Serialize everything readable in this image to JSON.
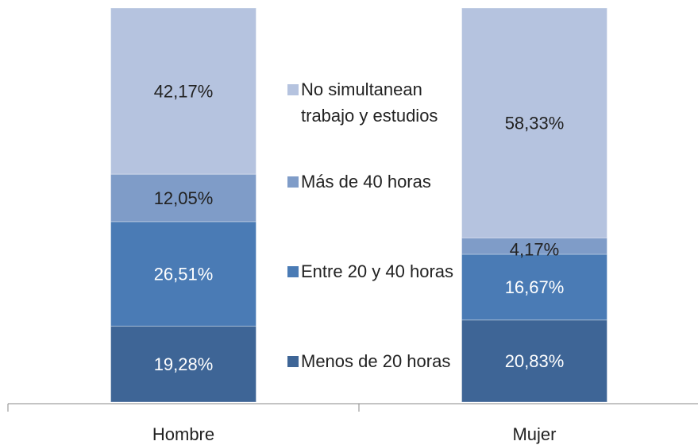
{
  "chart_data": {
    "type": "stacked_bar",
    "categories": [
      "Hombre",
      "Mujer"
    ],
    "series": [
      {
        "name": "Menos de 20 horas",
        "color": "#3e6596",
        "values": [
          19.28,
          20.83
        ],
        "value_labels": [
          "19,28%",
          "20,83%"
        ]
      },
      {
        "name": "Entre 20 y 40 horas",
        "color": "#4a7bb5",
        "values": [
          26.51,
          16.67
        ],
        "value_labels": [
          "26,51%",
          "16,67%"
        ]
      },
      {
        "name": "Más de 40 horas",
        "color": "#7f9cc8",
        "values": [
          12.05,
          4.17
        ],
        "value_labels": [
          "12,05%",
          "4,17%"
        ]
      },
      {
        "name": "No simultanean trabajo y estudios",
        "color": "#b5c3df",
        "values": [
          42.17,
          58.33
        ],
        "value_labels": [
          "42,17%",
          "58,33%"
        ]
      }
    ]
  }
}
